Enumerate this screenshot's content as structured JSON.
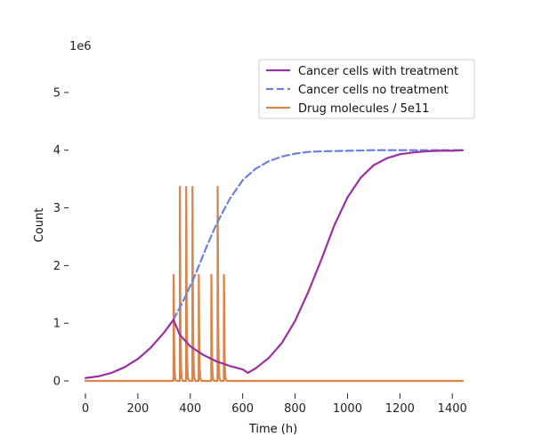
{
  "chart_data": {
    "type": "line",
    "xlabel": "Time (h)",
    "ylabel": "Count",
    "y_offset_label": "1e6",
    "xlim": [
      0,
      1440
    ],
    "ylim": [
      0,
      5.4
    ],
    "x_ticks": [
      0,
      200,
      400,
      600,
      800,
      1000,
      1200,
      1400
    ],
    "y_ticks": [
      0,
      1,
      2,
      3,
      4,
      5
    ],
    "grid": false,
    "legend_position": "top-right",
    "series": [
      {
        "name": "Cancer cells with treatment",
        "color": "#9b30a0",
        "style": "solid",
        "x": [
          0,
          50,
          100,
          150,
          200,
          250,
          300,
          336,
          360,
          400,
          450,
          500,
          550,
          600,
          620,
          650,
          700,
          750,
          800,
          850,
          900,
          950,
          1000,
          1050,
          1100,
          1150,
          1200,
          1250,
          1300,
          1350,
          1400,
          1440
        ],
        "y": [
          0.05,
          0.08,
          0.14,
          0.24,
          0.38,
          0.58,
          0.84,
          1.06,
          0.8,
          0.6,
          0.45,
          0.34,
          0.26,
          0.2,
          0.14,
          0.22,
          0.4,
          0.66,
          1.04,
          1.54,
          2.1,
          2.7,
          3.18,
          3.52,
          3.74,
          3.86,
          3.93,
          3.96,
          3.98,
          3.99,
          3.99,
          4.0
        ]
      },
      {
        "name": "Cancer cells no treatment",
        "color": "#6a82dc",
        "style": "dashed",
        "x": [
          336,
          380,
          420,
          460,
          500,
          550,
          600,
          650,
          700,
          750,
          800,
          850,
          900,
          1000,
          1100,
          1200,
          1300,
          1440
        ],
        "y": [
          1.06,
          1.45,
          1.85,
          2.3,
          2.72,
          3.15,
          3.48,
          3.68,
          3.81,
          3.89,
          3.94,
          3.97,
          3.98,
          3.99,
          4.0,
          4.0,
          4.0,
          4.0
        ]
      },
      {
        "name": "Drug molecules / 5e11",
        "color": "#d9844a",
        "style": "solid",
        "pulses": [
          {
            "t": 336,
            "peak": 2.95
          },
          {
            "t": 360,
            "peak": 5.4
          },
          {
            "t": 384,
            "peak": 5.4
          },
          {
            "t": 408,
            "peak": 5.4
          },
          {
            "t": 432,
            "peak": 2.95
          },
          {
            "t": 480,
            "peak": 2.95
          },
          {
            "t": 504,
            "peak": 5.4
          },
          {
            "t": 528,
            "peak": 2.95
          }
        ]
      }
    ]
  }
}
